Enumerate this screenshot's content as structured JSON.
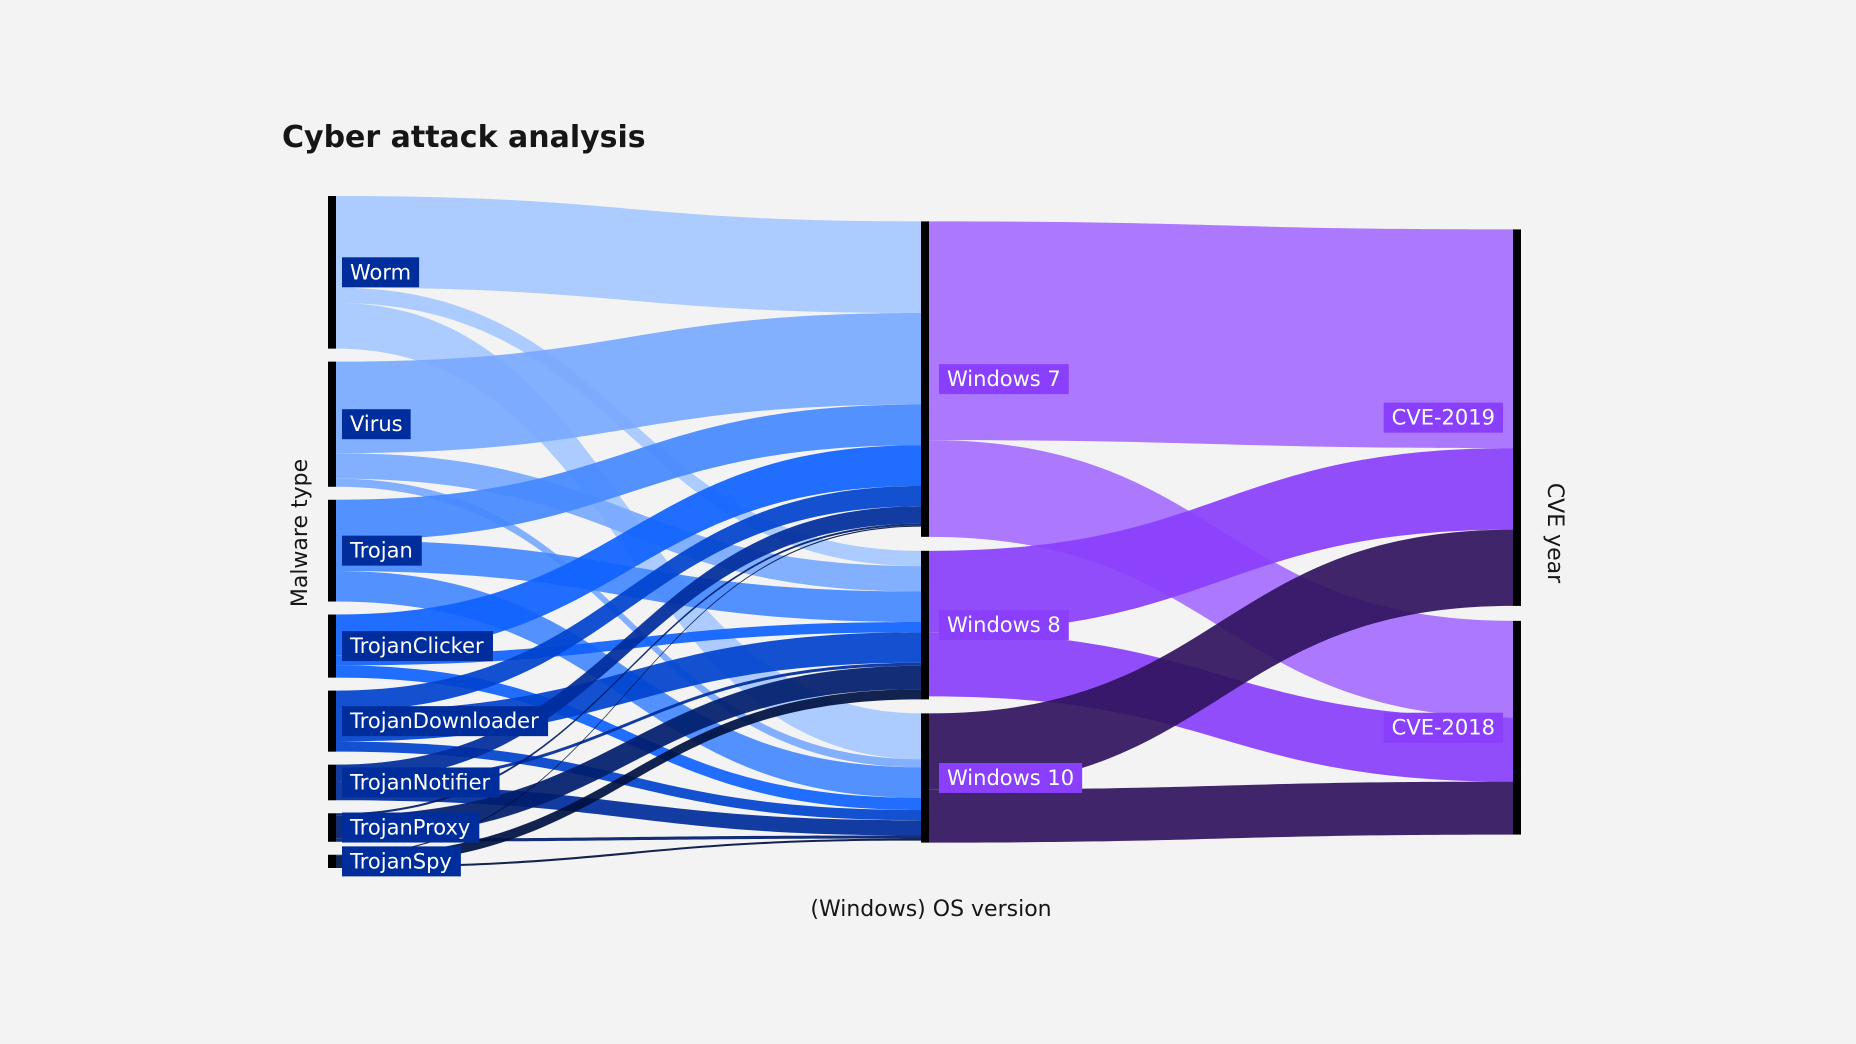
{
  "chart_data": {
    "type": "sankey",
    "title": "Cyber attack analysis",
    "columns": [
      {
        "label": "Malware type",
        "nodes": [
          "Worm",
          "Virus",
          "Trojan",
          "TrojanClicker",
          "TrojanDownloader",
          "TrojanNotifier",
          "TrojanProxy",
          "TrojanSpy"
        ]
      },
      {
        "label": "(Windows) OS version",
        "nodes": [
          "Windows 7",
          "Windows 8",
          "Windows 10"
        ]
      },
      {
        "label": "CVE year",
        "nodes": [
          "CVE-2019",
          "CVE-2018"
        ]
      }
    ],
    "links": [
      {
        "source": "Worm",
        "target": "Windows 7",
        "value": 9
      },
      {
        "source": "Worm",
        "target": "Windows 8",
        "value": 1.5
      },
      {
        "source": "Worm",
        "target": "Windows 10",
        "value": 4.5
      },
      {
        "source": "Virus",
        "target": "Windows 7",
        "value": 9
      },
      {
        "source": "Virus",
        "target": "Windows 8",
        "value": 2.5
      },
      {
        "source": "Virus",
        "target": "Windows 10",
        "value": 0.8
      },
      {
        "source": "Trojan",
        "target": "Windows 7",
        "value": 4
      },
      {
        "source": "Trojan",
        "target": "Windows 8",
        "value": 3
      },
      {
        "source": "Trojan",
        "target": "Windows 10",
        "value": 3
      },
      {
        "source": "TrojanClicker",
        "target": "Windows 7",
        "value": 4
      },
      {
        "source": "TrojanClicker",
        "target": "Windows 8",
        "value": 1
      },
      {
        "source": "TrojanClicker",
        "target": "Windows 10",
        "value": 1.2
      },
      {
        "source": "TrojanDownloader",
        "target": "Windows 7",
        "value": 2
      },
      {
        "source": "TrojanDownloader",
        "target": "Windows 8",
        "value": 3
      },
      {
        "source": "TrojanDownloader",
        "target": "Windows 10",
        "value": 1
      },
      {
        "source": "TrojanNotifier",
        "target": "Windows 7",
        "value": 1.7
      },
      {
        "source": "TrojanNotifier",
        "target": "Windows 8",
        "value": 0.3
      },
      {
        "source": "TrojanNotifier",
        "target": "Windows 10",
        "value": 1.5
      },
      {
        "source": "TrojanProxy",
        "target": "Windows 7",
        "value": 0.2
      },
      {
        "source": "TrojanProxy",
        "target": "Windows 8",
        "value": 2.3
      },
      {
        "source": "TrojanProxy",
        "target": "Windows 10",
        "value": 0.3
      },
      {
        "source": "TrojanSpy",
        "target": "Windows 7",
        "value": 0.1
      },
      {
        "source": "TrojanSpy",
        "target": "Windows 8",
        "value": 1
      },
      {
        "source": "TrojanSpy",
        "target": "Windows 10",
        "value": 0.2
      },
      {
        "source": "Windows 7",
        "target": "CVE-2019",
        "value": 21.5
      },
      {
        "source": "Windows 7",
        "target": "CVE-2018",
        "value": 9.5
      },
      {
        "source": "Windows 8",
        "target": "CVE-2019",
        "value": 8
      },
      {
        "source": "Windows 8",
        "target": "CVE-2018",
        "value": 6.3
      },
      {
        "source": "Windows 10",
        "target": "CVE-2019",
        "value": 7.5
      },
      {
        "source": "Windows 10",
        "target": "CVE-2018",
        "value": 5.2
      }
    ],
    "colors": {
      "Worm": "#a6c8ff",
      "Virus": "#78a9ff",
      "Trojan": "#4589ff",
      "TrojanClicker": "#0f62fe",
      "TrojanDownloader": "#0043ce",
      "TrojanNotifier": "#002d9c",
      "TrojanProxy": "#001d6c",
      "TrojanSpy": "#001141",
      "Windows 7": "#a56eff",
      "Windows 8": "#8a3ffc",
      "Windows 10": "#31135e",
      "CVE-2019": "#8a3ffc",
      "CVE-2018": "#8a3ffc"
    },
    "node_bar_color": "#000000",
    "label_bg": {
      "col0": "#002d9c",
      "col1": "#8a3ffc",
      "col2": "#8a3ffc"
    }
  }
}
